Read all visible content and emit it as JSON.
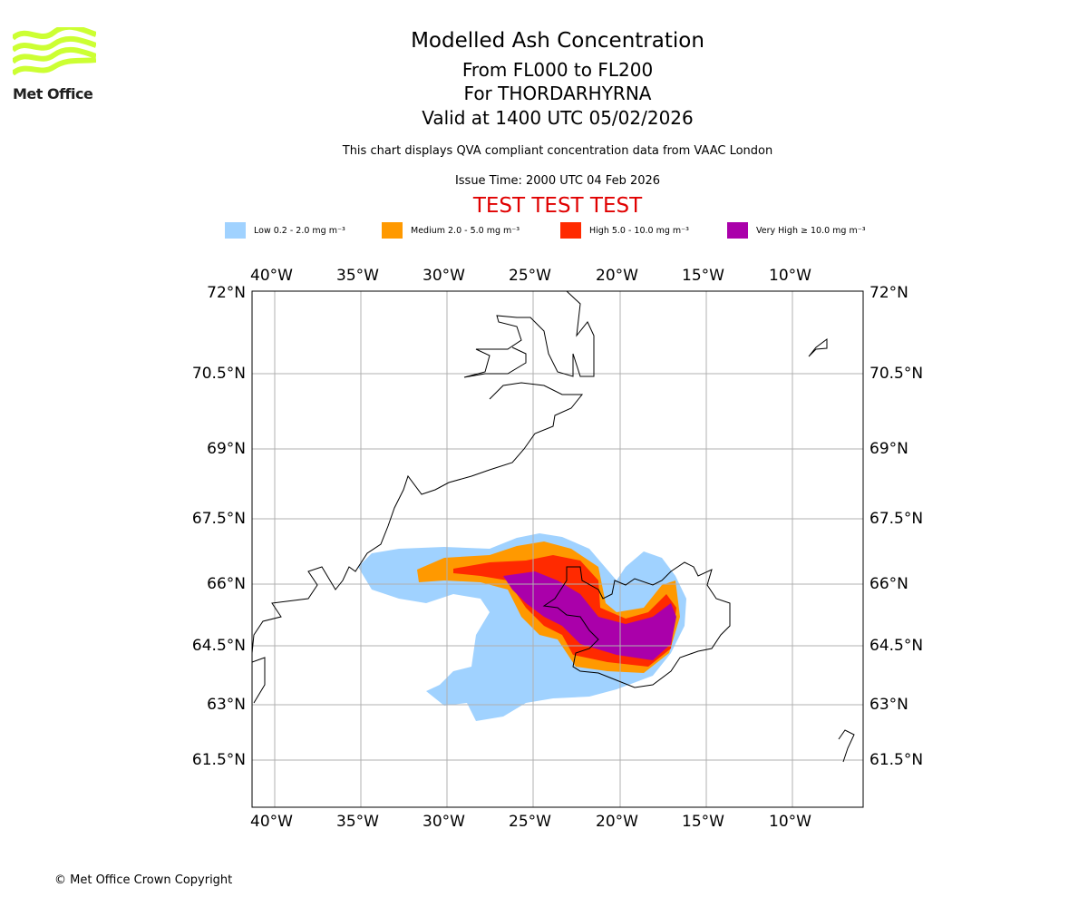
{
  "logo": {
    "text": "Met Office",
    "color": "#ccff33"
  },
  "title": {
    "main": "Modelled Ash Concentration",
    "levels": "From FL000 to FL200",
    "volcano": "For THORDARHYRNA",
    "valid": "Valid at 1400 UTC 05/02/2026"
  },
  "subtitle": "This chart displays QVA compliant concentration data from VAAC London",
  "issue_time": "Issue Time: 2000 UTC 04 Feb 2026",
  "test_banner": "TEST TEST TEST",
  "legend": [
    {
      "label": "Low 0.2 - 2.0 mg m⁻³",
      "color": "#a0d2ff"
    },
    {
      "label": "Medium 2.0 - 5.0 mg m⁻³",
      "color": "#ff9900"
    },
    {
      "label": "High 5.0 - 10.0 mg m⁻³",
      "color": "#ff2a00"
    },
    {
      "label": "Very High ≥ 10.0 mg m⁻³",
      "color": "#aa00aa"
    }
  ],
  "map": {
    "lon_labels": [
      "40°W",
      "35°W",
      "30°W",
      "25°W",
      "20°W",
      "15°W",
      "10°W"
    ],
    "lat_labels": [
      "72°N",
      "70.5°N",
      "69°N",
      "67.5°N",
      "66°N",
      "64.5°N",
      "63°N",
      "61.5°N"
    ]
  },
  "copyright": "© Met Office Crown Copyright"
}
